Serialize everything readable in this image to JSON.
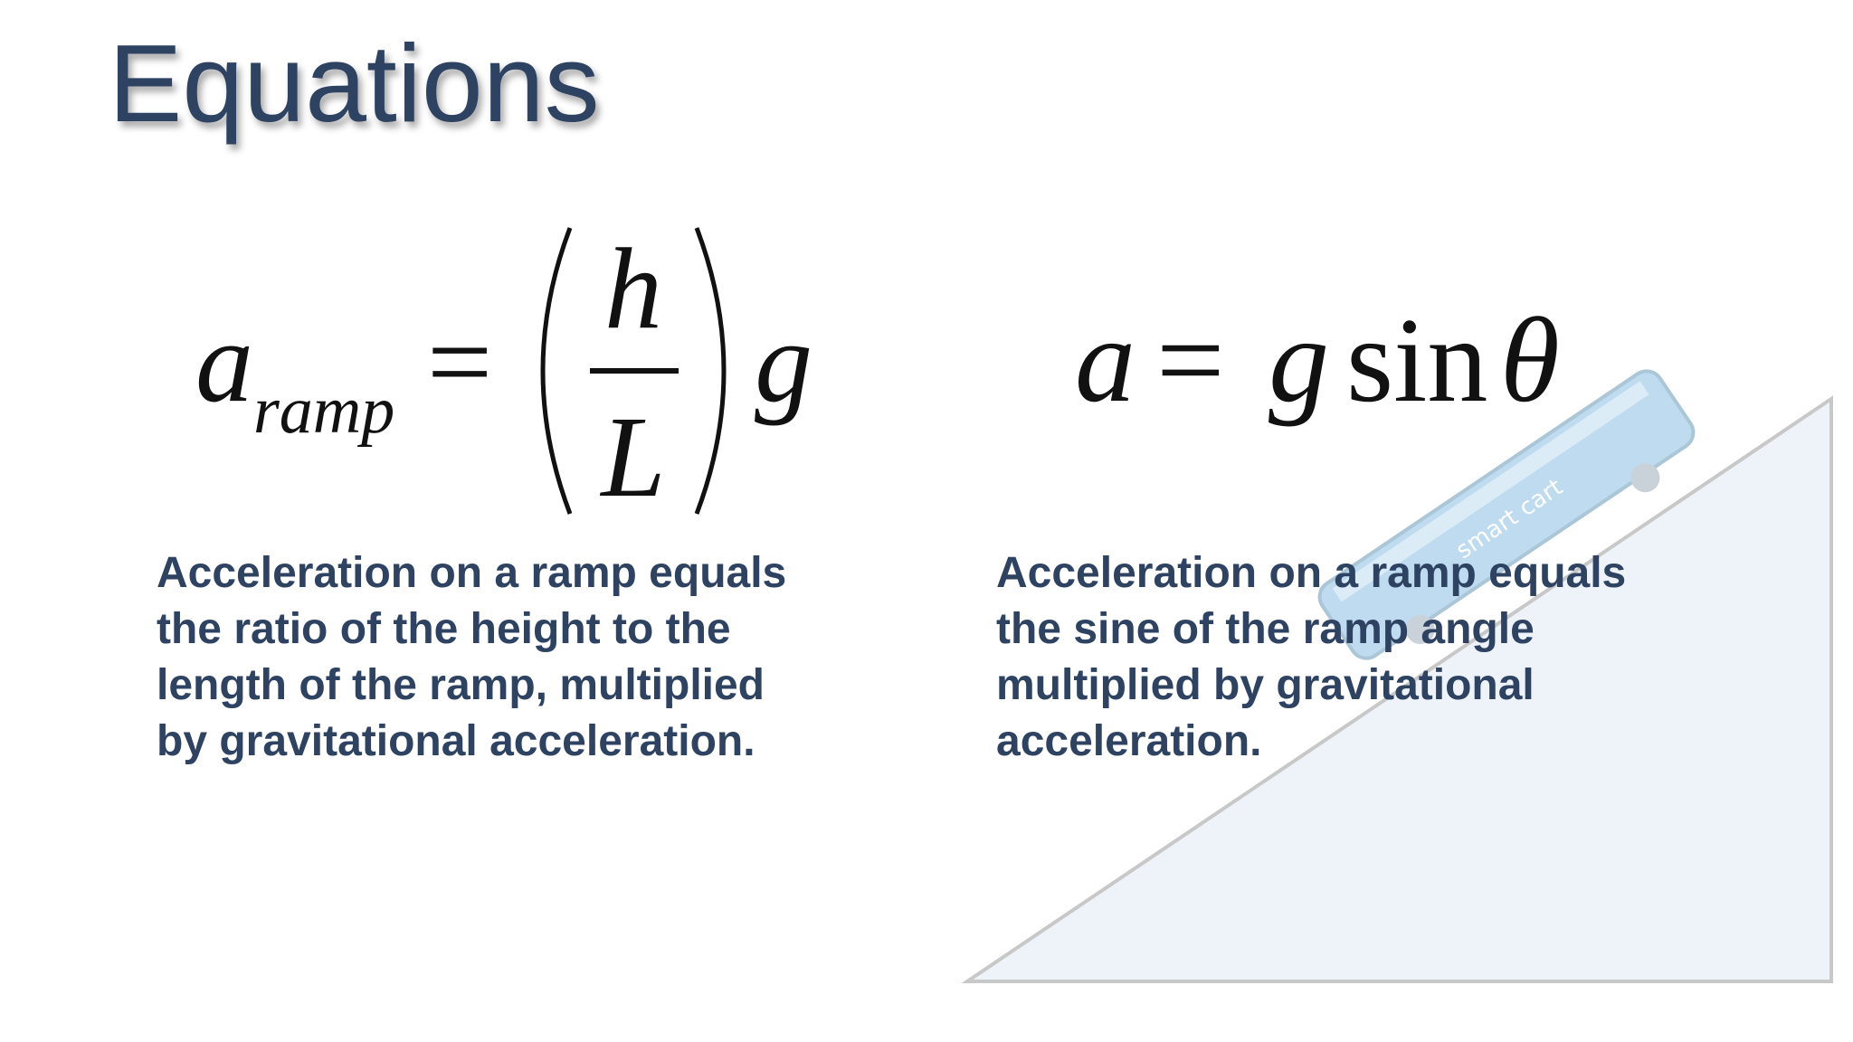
{
  "header": {
    "title": "Equations"
  },
  "equations": [
    {
      "lhs": "a",
      "subscript": "ramp",
      "equals": "=",
      "numerator": "h",
      "denominator": "L",
      "factor": "g"
    },
    {
      "lhs": "a",
      "equals": "=",
      "factor": "g",
      "function": "sin",
      "argument": "θ"
    }
  ],
  "descriptions": [
    {
      "lines": [
        "Acceleration on a ramp equals",
        "the ratio of the height to the",
        "length of the ramp, multiplied",
        "by gravitational acceleration."
      ]
    },
    {
      "lines": [
        "Acceleration on a ramp equals",
        "the sine of the ramp angle",
        "multiplied by gravitational",
        "acceleration."
      ]
    }
  ],
  "illustration": {
    "cart_label": "smart cart"
  }
}
